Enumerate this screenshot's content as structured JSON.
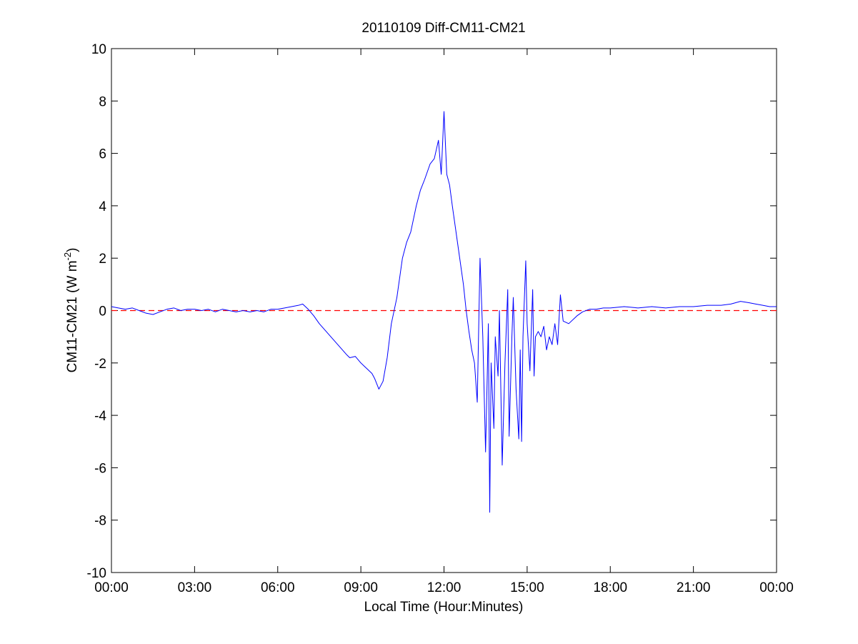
{
  "chart_data": {
    "type": "line",
    "title": "20110109 Diff-CM11-CM21",
    "xlabel": "Local Time (Hour:Minutes)",
    "ylabel": [
      "CM11-CM21 (W m",
      "-2",
      ")"
    ],
    "xlim": [
      0,
      24
    ],
    "xticks": [
      {
        "value": 0,
        "label": "00:00"
      },
      {
        "value": 3,
        "label": "03:00"
      },
      {
        "value": 6,
        "label": "06:00"
      },
      {
        "value": 9,
        "label": "09:00"
      },
      {
        "value": 12,
        "label": "12:00"
      },
      {
        "value": 15,
        "label": "15:00"
      },
      {
        "value": 18,
        "label": "18:00"
      },
      {
        "value": 21,
        "label": "21:00"
      },
      {
        "value": 24,
        "label": "00:00"
      }
    ],
    "ylim": [
      -10,
      10
    ],
    "yticks": [
      -10,
      -8,
      -6,
      -4,
      -2,
      0,
      2,
      4,
      6,
      8,
      10
    ],
    "grid": false,
    "reference_line": {
      "value": 0,
      "color": "#ff0000",
      "dashed": true
    },
    "series": [
      {
        "color": "#0000ff",
        "x": [
          0,
          0.25,
          0.5,
          0.75,
          1,
          1.25,
          1.5,
          1.75,
          2,
          2.25,
          2.5,
          2.75,
          3,
          3.25,
          3.5,
          3.75,
          4,
          4.25,
          4.5,
          4.75,
          5,
          5.25,
          5.5,
          5.75,
          6,
          6.25,
          6.5,
          6.75,
          6.9,
          7.1,
          7.3,
          7.5,
          7.75,
          8,
          8.25,
          8.5,
          8.6,
          8.8,
          9,
          9.2,
          9.4,
          9.5,
          9.65,
          9.8,
          9.95,
          10.1,
          10.3,
          10.5,
          10.65,
          10.8,
          11,
          11.15,
          11.3,
          11.5,
          11.65,
          11.8,
          11.9,
          12,
          12.1,
          12.2,
          12.3,
          12.5,
          12.7,
          12.8,
          12.9,
          13,
          13.1,
          13.2,
          13.3,
          13.4,
          13.5,
          13.55,
          13.6,
          13.65,
          13.7,
          13.8,
          13.85,
          13.95,
          14,
          14.1,
          14.2,
          14.3,
          14.35,
          14.45,
          14.5,
          14.6,
          14.7,
          14.75,
          14.8,
          14.85,
          14.95,
          15,
          15.1,
          15.2,
          15.25,
          15.3,
          15.4,
          15.5,
          15.6,
          15.7,
          15.8,
          15.9,
          16,
          16.1,
          16.2,
          16.3,
          16.5,
          16.8,
          17,
          17.25,
          17.5,
          17.75,
          18,
          18.5,
          19,
          19.5,
          20,
          20.5,
          21,
          21.5,
          22,
          22.35,
          22.7,
          23,
          23.25,
          23.5,
          23.75,
          24
        ],
        "values": [
          0.15,
          0.1,
          0.05,
          0.1,
          0.0,
          -0.1,
          -0.15,
          -0.05,
          0.05,
          0.1,
          0.0,
          0.05,
          0.05,
          0.0,
          0.05,
          -0.05,
          0.05,
          0.0,
          -0.05,
          0.0,
          -0.05,
          0.0,
          -0.05,
          0.05,
          0.05,
          0.1,
          0.15,
          0.2,
          0.25,
          0.05,
          -0.2,
          -0.5,
          -0.8,
          -1.1,
          -1.4,
          -1.7,
          -1.8,
          -1.75,
          -2.0,
          -2.2,
          -2.4,
          -2.6,
          -3.0,
          -2.7,
          -1.8,
          -0.5,
          0.5,
          2.0,
          2.6,
          3.0,
          4.0,
          4.6,
          5.0,
          5.6,
          5.8,
          6.5,
          5.2,
          7.6,
          5.2,
          4.8,
          4.0,
          2.5,
          1.0,
          0.0,
          -0.8,
          -1.5,
          -2.0,
          -3.5,
          2.0,
          -1.0,
          -5.4,
          -3.0,
          -0.5,
          -7.7,
          -2.0,
          -4.5,
          -1.0,
          -2.5,
          0.0,
          -5.9,
          -2.0,
          0.8,
          -4.8,
          -1.0,
          0.5,
          -3.0,
          -4.9,
          -1.5,
          -5.0,
          -1.0,
          1.9,
          -0.5,
          -2.3,
          0.8,
          -2.5,
          -1.0,
          -0.8,
          -1.0,
          -0.6,
          -1.5,
          -1.0,
          -1.3,
          -0.5,
          -1.3,
          0.6,
          -0.4,
          -0.5,
          -0.2,
          -0.05,
          0.05,
          0.05,
          0.1,
          0.1,
          0.15,
          0.1,
          0.15,
          0.1,
          0.15,
          0.15,
          0.2,
          0.2,
          0.25,
          0.35,
          0.3,
          0.25,
          0.2,
          0.15,
          0.15
        ]
      }
    ]
  }
}
